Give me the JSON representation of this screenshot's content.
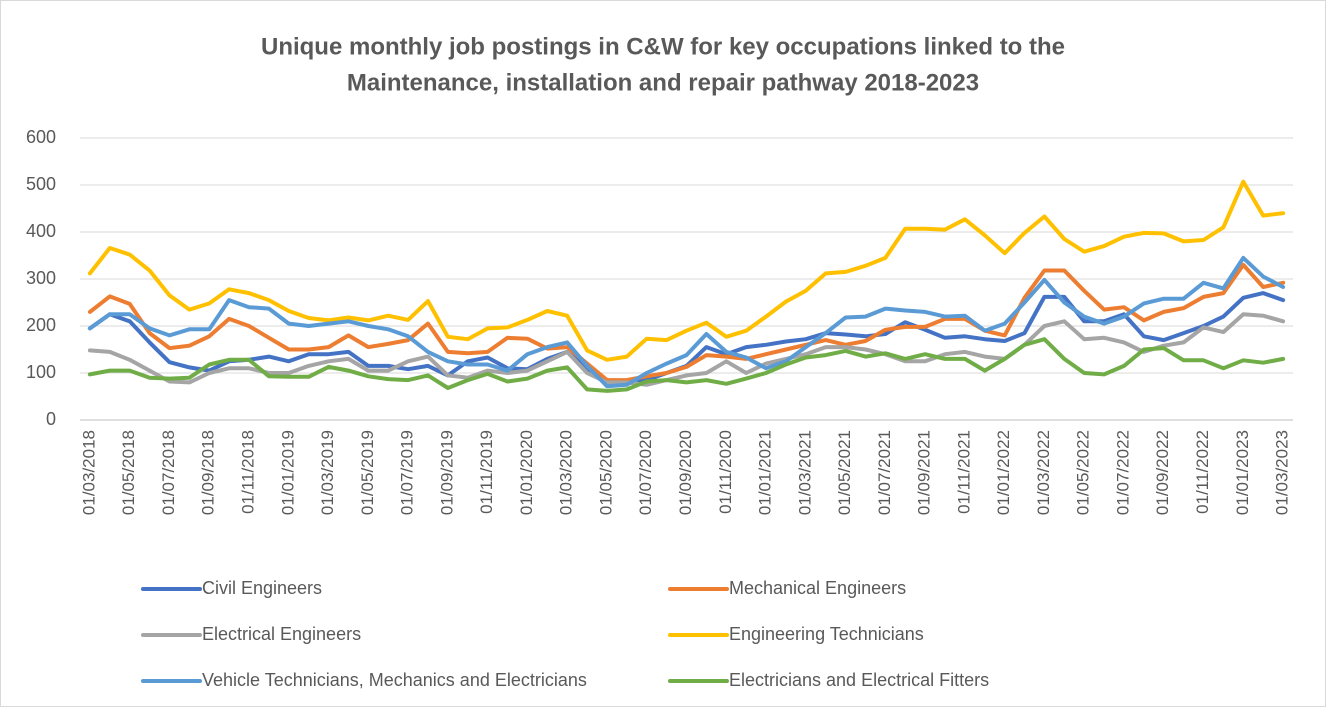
{
  "chart_data": {
    "type": "line",
    "title": [
      "Unique monthly job postings in C&W for key occupations linked to the",
      "Maintenance, installation and repair pathway 2018-2023"
    ],
    "categories": [
      "01/03/2018",
      null,
      "01/05/2018",
      null,
      "01/07/2018",
      null,
      "01/09/2018",
      null,
      "01/11/2018",
      null,
      "01/01/2019",
      null,
      "01/03/2019",
      null,
      "01/05/2019",
      null,
      "01/07/2019",
      null,
      "01/09/2019",
      null,
      "01/11/2019",
      null,
      "01/01/2020",
      null,
      "01/03/2020",
      null,
      "01/05/2020",
      null,
      "01/07/2020",
      null,
      "01/09/2020",
      null,
      "01/11/2020",
      null,
      "01/01/2021",
      null,
      "01/03/2021",
      null,
      "01/05/2021",
      null,
      "01/07/2021",
      null,
      "01/09/2021",
      null,
      "01/11/2021",
      null,
      "01/01/2022",
      null,
      "01/03/2022",
      null,
      "01/05/2022",
      null,
      "01/07/2022",
      null,
      "01/09/2022",
      null,
      "01/11/2022",
      null,
      "01/01/2023",
      null,
      "01/03/2023"
    ],
    "series": [
      {
        "name": "Civil Engineers",
        "color": "#4472c4",
        "values": [
          195,
          225,
          210,
          165,
          123,
          112,
          105,
          125,
          128,
          135,
          125,
          140,
          140,
          145,
          115,
          115,
          108,
          115,
          95,
          125,
          133,
          110,
          108,
          130,
          145,
          110,
          75,
          78,
          85,
          100,
          115,
          155,
          140,
          155,
          160,
          167,
          172,
          185,
          182,
          178,
          183,
          208,
          192,
          175,
          178,
          172,
          168,
          185,
          262,
          262,
          210,
          210,
          225,
          178,
          170,
          185,
          200,
          220,
          260,
          270,
          255
        ]
      },
      {
        "name": "Mechanical Engineers",
        "color": "#ed7d31",
        "values": [
          230,
          263,
          247,
          185,
          153,
          158,
          178,
          215,
          200,
          175,
          150,
          150,
          155,
          180,
          155,
          162,
          170,
          205,
          145,
          142,
          145,
          175,
          173,
          152,
          155,
          120,
          85,
          85,
          93,
          100,
          113,
          138,
          135,
          130,
          140,
          150,
          160,
          170,
          160,
          168,
          192,
          198,
          198,
          215,
          215,
          190,
          180,
          260,
          318,
          318,
          275,
          235,
          240,
          212,
          230,
          238,
          262,
          270,
          330,
          283,
          292
        ]
      },
      {
        "name": "Electrical Engineers",
        "color": "#a5a5a5",
        "values": [
          148,
          145,
          128,
          105,
          82,
          80,
          100,
          110,
          110,
          100,
          100,
          115,
          125,
          130,
          105,
          105,
          125,
          135,
          95,
          90,
          105,
          100,
          105,
          125,
          145,
          100,
          80,
          80,
          75,
          85,
          95,
          100,
          125,
          100,
          120,
          130,
          140,
          155,
          155,
          150,
          140,
          125,
          125,
          140,
          145,
          135,
          130,
          160,
          200,
          210,
          172,
          175,
          165,
          145,
          158,
          165,
          197,
          187,
          225,
          222,
          210
        ]
      },
      {
        "name": "Engineering Technicians",
        "color": "#ffc000",
        "values": [
          312,
          366,
          352,
          318,
          265,
          235,
          248,
          278,
          270,
          255,
          232,
          217,
          212,
          218,
          212,
          222,
          213,
          253,
          177,
          172,
          195,
          197,
          213,
          232,
          222,
          148,
          128,
          135,
          173,
          170,
          190,
          207,
          177,
          190,
          220,
          252,
          275,
          312,
          315,
          328,
          345,
          407,
          407,
          405,
          427,
          393,
          355,
          398,
          433,
          385,
          358,
          370,
          390,
          398,
          397,
          380,
          383,
          410,
          507,
          435,
          440
        ]
      },
      {
        "name": "Vehicle Technicians, Mechanics and Electricians",
        "color": "#5b9bd5",
        "values": [
          195,
          225,
          225,
          195,
          180,
          193,
          193,
          255,
          240,
          237,
          205,
          200,
          205,
          210,
          200,
          193,
          178,
          145,
          125,
          118,
          118,
          105,
          140,
          155,
          165,
          115,
          72,
          75,
          100,
          120,
          138,
          183,
          145,
          133,
          110,
          125,
          155,
          185,
          218,
          220,
          237,
          233,
          230,
          220,
          222,
          190,
          205,
          250,
          298,
          250,
          220,
          205,
          220,
          248,
          258,
          258,
          292,
          280,
          345,
          305,
          283
        ]
      },
      {
        "name": "Electricians and Electrical Fitters",
        "color": "#70ad47",
        "values": [
          97,
          105,
          105,
          90,
          88,
          90,
          118,
          128,
          128,
          93,
          92,
          92,
          113,
          105,
          93,
          87,
          85,
          95,
          68,
          85,
          98,
          82,
          88,
          105,
          112,
          65,
          62,
          65,
          82,
          85,
          80,
          85,
          77,
          88,
          100,
          118,
          133,
          138,
          147,
          135,
          142,
          130,
          140,
          130,
          130,
          105,
          130,
          160,
          172,
          130,
          100,
          97,
          115,
          150,
          153,
          127,
          127,
          110,
          127,
          122,
          130
        ]
      }
    ],
    "ylim": [
      0,
      600
    ],
    "yticks": [
      0,
      100,
      200,
      300,
      400,
      500,
      600
    ],
    "grid": true
  }
}
